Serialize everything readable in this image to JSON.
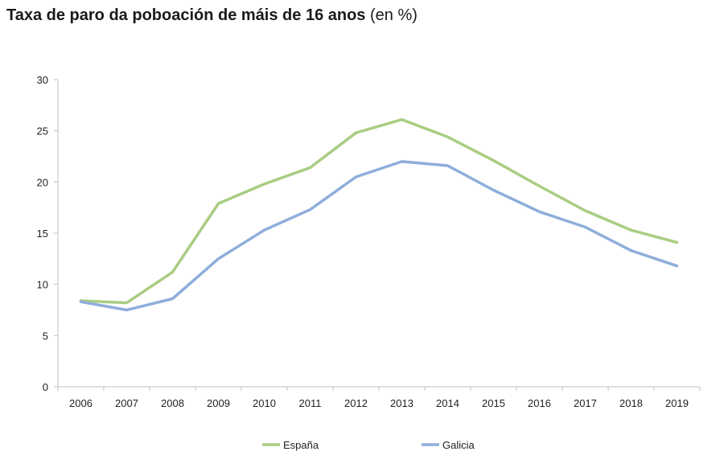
{
  "chart_data": {
    "type": "line",
    "title_bold": "Taxa de paro da poboación de máis de 16 anos",
    "title_unit": "(en  %)",
    "xlabel": "",
    "ylabel": "",
    "ylim": [
      0,
      30
    ],
    "yticks": [
      0,
      5,
      10,
      15,
      20,
      25,
      30
    ],
    "categories": [
      "2006",
      "2007",
      "2008",
      "2009",
      "2010",
      "2011",
      "2012",
      "2013",
      "2014",
      "2015",
      "2016",
      "2017",
      "2018",
      "2019"
    ],
    "series": [
      {
        "name": "España",
        "color": "#a9cd82",
        "values": [
          8.4,
          8.2,
          11.2,
          17.9,
          19.8,
          21.4,
          24.8,
          26.1,
          24.4,
          22.1,
          19.6,
          17.2,
          15.3,
          14.1
        ]
      },
      {
        "name": "Galicia",
        "color": "#8eaedb",
        "values": [
          8.3,
          7.5,
          8.6,
          12.5,
          15.3,
          17.3,
          20.5,
          22.0,
          21.6,
          19.2,
          17.1,
          15.6,
          13.3,
          11.8
        ]
      }
    ],
    "grid": false,
    "legend": "bottom"
  }
}
